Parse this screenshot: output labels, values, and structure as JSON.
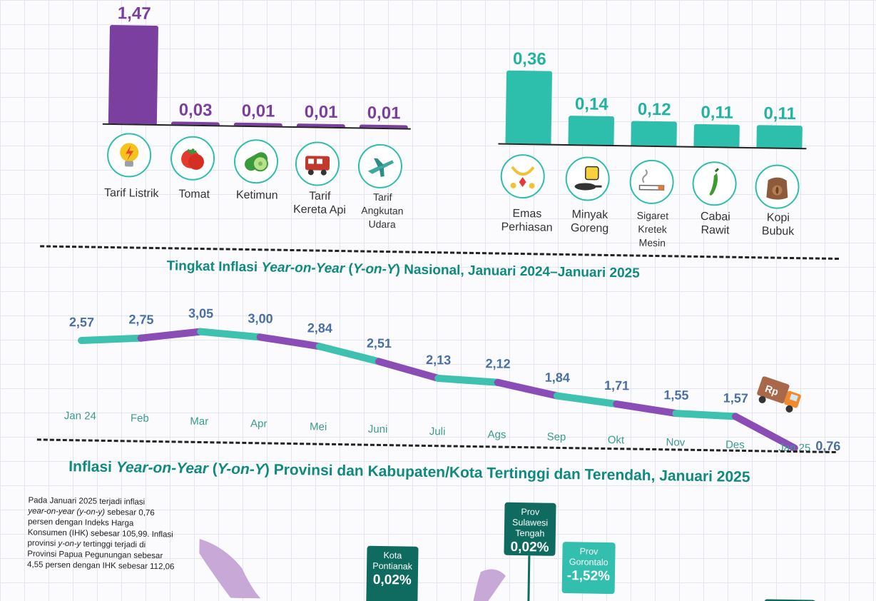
{
  "chart_data": [
    {
      "type": "bar",
      "categories": [
        "Tarif Listrik",
        "Tomat",
        "Ketimun",
        "Tarif\nKereta Api",
        "Tarif\nAngkutan\nUdara"
      ],
      "values": [
        1.47,
        0.03,
        0.01,
        0.01,
        0.01
      ],
      "value_labels": [
        "1,47",
        "0,03",
        "0,01",
        "0,01",
        "0,01"
      ],
      "icons": [
        "lightbulb-icon",
        "tomato-icon",
        "cucumber-icon",
        "train-icon",
        "airplane-icon"
      ],
      "color": "#7b3fa0"
    },
    {
      "type": "bar",
      "categories": [
        "Emas\nPerhiasan",
        "Minyak\nGoreng",
        "Sigaret\nKretek\nMesin",
        "Cabai\nRawit",
        "Kopi\nBubuk"
      ],
      "values": [
        0.36,
        0.14,
        0.12,
        0.11,
        0.11
      ],
      "value_labels": [
        "0,36",
        "0,14",
        "0,12",
        "0,11",
        "0,11"
      ],
      "icons": [
        "gold-jewelry-icon",
        "cooking-oil-icon",
        "cigarette-icon",
        "chili-icon",
        "coffee-sack-icon"
      ],
      "color": "#2ebfac"
    },
    {
      "type": "line",
      "title_parts": [
        "Tingkat Inflasi ",
        "Year-on-Year",
        " (",
        "Y-on-Y",
        ") Nasional, Januari 2024–Januari 2025"
      ],
      "categories": [
        "Jan 24",
        "Feb",
        "Mar",
        "Apr",
        "Mei",
        "Juni",
        "Juli",
        "Ags",
        "Sep",
        "Okt",
        "Nov",
        "Des",
        "Jan 25"
      ],
      "values": [
        2.57,
        2.75,
        3.05,
        3.0,
        2.84,
        2.51,
        2.13,
        2.12,
        1.84,
        1.71,
        1.55,
        1.57,
        0.76
      ],
      "value_labels": [
        "2,57",
        "2,75",
        "3,05",
        "3,00",
        "2,84",
        "2,51",
        "2,13",
        "2,12",
        "1,84",
        "1,71",
        "1,55",
        "1,57",
        "0,76"
      ],
      "colors": [
        "#3fc1b0",
        "#8a4db5"
      ],
      "truck_label": "Rp"
    }
  ],
  "section2": {
    "title_parts": [
      "Inflasi ",
      "Year-on-Year",
      " (",
      "Y-on-Y",
      ") Provinsi dan Kabupaten/Kota Tertinggi dan Terendah, Januari 2025"
    ],
    "paragraph_lines": [
      [
        "Pada Januari 2025 terjadi inflasi",
        ""
      ],
      [
        "",
        "year-on-year (y-on-y)",
        " sebesar 0,76"
      ],
      [
        "persen dengan Indeks Harga",
        ""
      ],
      [
        "Konsumen (IHK) sebesar 105,99. Inflasi",
        ""
      ],
      [
        "provinsi ",
        "y-on-y",
        " tertinggi terjadi di"
      ],
      [
        "Provinsi Papua Pegunungan sebesar",
        ""
      ],
      [
        "4,55 persen dengan IHK sebesar 112,06",
        ""
      ]
    ],
    "callouts": [
      {
        "label": "Kota\nPontianak",
        "value": "0,02%"
      },
      {
        "label": "Prov\nSulawesi\nTengah",
        "value": "0,02%"
      },
      {
        "label": "Prov\nGorontalo",
        "value": "-1,52%"
      }
    ]
  }
}
